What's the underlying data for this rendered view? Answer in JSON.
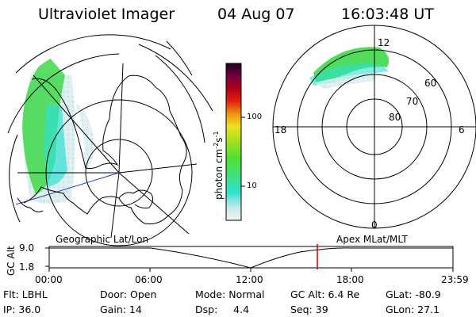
{
  "header": {
    "instrument": "Ultraviolet Imager",
    "date": "04 Aug 07",
    "time": "16:03:48 UT"
  },
  "colorbar": {
    "label_main": "photon cm",
    "label_exp1": "-2",
    "label_mid": "s",
    "label_exp2": "-1",
    "ticks": [
      "100",
      "10"
    ]
  },
  "polar_plot": {
    "mlt_labels": {
      "top": "12",
      "left": "18",
      "right": "6",
      "bottom": "0"
    },
    "lat_labels": [
      "60",
      "70",
      "80"
    ]
  },
  "timeline": {
    "left_title": "Geographic Lat/Lon",
    "right_title": "Apex MLat/MLT",
    "axis_title": "GC Alt",
    "y_top": "9.0",
    "y_bottom": "1.8",
    "x_ticks": [
      "00:00",
      "06:00",
      "12:00",
      "18:00",
      "23:59"
    ]
  },
  "info": {
    "flt": "Flt: LBHL",
    "ip": "IP: 36.0",
    "door": "Door: Open",
    "gain": "Gain: 14",
    "mode": "Mode: Normal",
    "dsp": "Dsp:     4.4",
    "gcalt": "GC Alt: 6.4 Re",
    "seq": "Seq: 39",
    "glat": "GLat: -80.9",
    "glon": "GLon: 27.1"
  },
  "colors": {
    "marker": "#c00000",
    "track": "#2040c0",
    "aurora_green": "#3fd84a",
    "aurora_cyan": "#30e0d0"
  }
}
